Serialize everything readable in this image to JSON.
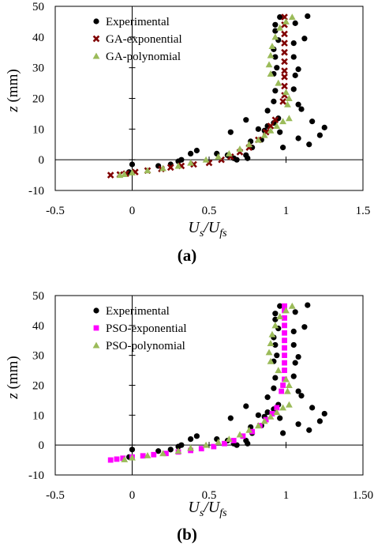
{
  "chart_data": [
    {
      "type": "scatter",
      "panel_label": "(a)",
      "xlabel_main": "U",
      "xlabel_sub1": "s",
      "xlabel_slash": "/U",
      "xlabel_sub2": "fs",
      "ylabel_italic": "z",
      "ylabel_unit": " (mm)",
      "xlim": [
        -0.5,
        1.5
      ],
      "ylim": [
        -10,
        50
      ],
      "xticks": [
        -0.5,
        0,
        0.5,
        1,
        1.5
      ],
      "xtick_labels": [
        "-0.5",
        "0",
        "0.5",
        "1",
        "1.5"
      ],
      "yticks": [
        -10,
        0,
        10,
        20,
        30,
        40,
        50
      ],
      "ytick_labels": [
        "-10",
        "0",
        "10",
        "20",
        "30",
        "40",
        "50"
      ],
      "legend_position": "top-left",
      "series": [
        {
          "name": "Experimental",
          "marker": "circle",
          "color": "#000000",
          "points": [
            [
              0.0,
              -1.5
            ],
            [
              -0.02,
              -4.0
            ],
            [
              0.17,
              -2.0
            ],
            [
              0.25,
              -1.5
            ],
            [
              0.3,
              -0.5
            ],
            [
              0.32,
              0.0
            ],
            [
              0.38,
              2.0
            ],
            [
              0.42,
              3.0
            ],
            [
              0.55,
              2.0
            ],
            [
              0.62,
              1.5
            ],
            [
              0.66,
              0.5
            ],
            [
              0.68,
              0.0
            ],
            [
              0.74,
              1.5
            ],
            [
              0.75,
              0.5
            ],
            [
              0.78,
              4.0
            ],
            [
              0.64,
              9.0
            ],
            [
              0.74,
              13.0
            ],
            [
              0.77,
              6.0
            ],
            [
              0.82,
              10.0
            ],
            [
              0.84,
              6.5
            ],
            [
              0.86,
              9.5
            ],
            [
              0.88,
              11.0
            ],
            [
              0.92,
              12.0
            ],
            [
              0.95,
              13.5
            ],
            [
              0.96,
              9.0
            ],
            [
              0.98,
              4.0
            ],
            [
              1.08,
              7.0
            ],
            [
              1.15,
              5.0
            ],
            [
              1.17,
              12.5
            ],
            [
              1.22,
              8.0
            ],
            [
              1.25,
              10.5
            ],
            [
              0.88,
              16.0
            ],
            [
              0.92,
              19.0
            ],
            [
              0.93,
              22.5
            ],
            [
              1.05,
              23.0
            ],
            [
              1.08,
              18.0
            ],
            [
              1.1,
              16.5
            ],
            [
              0.92,
              28.0
            ],
            [
              0.93,
              33.5
            ],
            [
              0.94,
              30.0
            ],
            [
              1.06,
              27.5
            ],
            [
              1.08,
              29.5
            ],
            [
              1.05,
              33.5
            ],
            [
              0.92,
              36.0
            ],
            [
              0.93,
              42.0
            ],
            [
              0.95,
              39.0
            ],
            [
              1.05,
              38.0
            ],
            [
              1.12,
              39.5
            ],
            [
              0.93,
              44.0
            ],
            [
              0.96,
              46.5
            ],
            [
              1.06,
              44.5
            ],
            [
              1.14,
              46.8
            ]
          ]
        },
        {
          "name": "GA-exponential",
          "marker": "x",
          "color": "#800000",
          "points": [
            [
              -0.14,
              -5.0
            ],
            [
              -0.08,
              -4.8
            ],
            [
              -0.04,
              -4.5
            ],
            [
              0.02,
              -4.0
            ],
            [
              0.1,
              -3.5
            ],
            [
              0.19,
              -3.0
            ],
            [
              0.25,
              -2.5
            ],
            [
              0.32,
              -2.0
            ],
            [
              0.4,
              -1.5
            ],
            [
              0.5,
              -1.0
            ],
            [
              0.58,
              0.0
            ],
            [
              0.64,
              1.0
            ],
            [
              0.7,
              2.5
            ],
            [
              0.76,
              4.0
            ],
            [
              0.82,
              6.5
            ],
            [
              0.87,
              9.0
            ],
            [
              0.9,
              11.0
            ],
            [
              0.93,
              13.0
            ],
            [
              0.98,
              19.0
            ],
            [
              0.99,
              21.0
            ],
            [
              0.99,
              24.0
            ],
            [
              0.99,
              27.0
            ],
            [
              0.99,
              29.0
            ],
            [
              0.99,
              32.0
            ],
            [
              0.99,
              35.0
            ],
            [
              0.99,
              38.0
            ],
            [
              0.99,
              41.0
            ],
            [
              0.99,
              44.0
            ],
            [
              0.99,
              46.5
            ]
          ]
        },
        {
          "name": "GA-polynomial",
          "marker": "triangle",
          "color": "#9BBB59",
          "points": [
            [
              -0.08,
              -5.0
            ],
            [
              -0.05,
              -4.7
            ],
            [
              0.0,
              -4.2
            ],
            [
              0.1,
              -3.5
            ],
            [
              0.2,
              -2.8
            ],
            [
              0.3,
              -2.0
            ],
            [
              0.38,
              -1.0
            ],
            [
              0.48,
              0.0
            ],
            [
              0.56,
              1.0
            ],
            [
              0.63,
              2.0
            ],
            [
              0.7,
              3.5
            ],
            [
              0.76,
              5.0
            ],
            [
              0.82,
              6.5
            ],
            [
              0.86,
              8.0
            ],
            [
              0.9,
              9.5
            ],
            [
              0.94,
              11.0
            ],
            [
              0.98,
              12.5
            ],
            [
              1.02,
              13.5
            ],
            [
              1.01,
              18.0
            ],
            [
              1.02,
              20.0
            ],
            [
              1.0,
              22.0
            ],
            [
              0.95,
              25.0
            ],
            [
              0.9,
              28.0
            ],
            [
              0.89,
              31.0
            ],
            [
              0.9,
              34.0
            ],
            [
              0.91,
              37.0
            ],
            [
              0.93,
              40.0
            ],
            [
              0.96,
              43.0
            ],
            [
              1.0,
              45.0
            ],
            [
              1.04,
              46.5
            ]
          ]
        }
      ]
    },
    {
      "type": "scatter",
      "panel_label": "(b)",
      "xlabel_main": "U",
      "xlabel_sub1": "s",
      "xlabel_slash": "/U",
      "xlabel_sub2": "fs",
      "ylabel_italic": "z",
      "ylabel_unit": " (mm)",
      "xlim": [
        -0.5,
        1.5
      ],
      "ylim": [
        -10,
        50
      ],
      "xticks": [
        -0.5,
        0,
        0.5,
        1,
        1.5
      ],
      "xtick_labels": [
        "-0.5",
        "0",
        "0.5",
        "1",
        "1.50"
      ],
      "yticks": [
        -10,
        0,
        10,
        20,
        30,
        40,
        50
      ],
      "ytick_labels": [
        "-10",
        "0",
        "10",
        "20",
        "30",
        "40",
        "50"
      ],
      "legend_position": "top-left",
      "series": [
        {
          "name": "Experimental",
          "marker": "circle",
          "color": "#000000",
          "points": [
            [
              0.0,
              -1.5
            ],
            [
              -0.02,
              -4.0
            ],
            [
              0.17,
              -2.0
            ],
            [
              0.25,
              -1.5
            ],
            [
              0.3,
              -0.5
            ],
            [
              0.32,
              0.0
            ],
            [
              0.38,
              2.0
            ],
            [
              0.42,
              3.0
            ],
            [
              0.55,
              2.0
            ],
            [
              0.62,
              1.5
            ],
            [
              0.66,
              0.5
            ],
            [
              0.68,
              0.0
            ],
            [
              0.74,
              1.5
            ],
            [
              0.75,
              0.5
            ],
            [
              0.78,
              4.0
            ],
            [
              0.64,
              9.0
            ],
            [
              0.74,
              13.0
            ],
            [
              0.77,
              6.0
            ],
            [
              0.82,
              10.0
            ],
            [
              0.84,
              6.5
            ],
            [
              0.86,
              9.5
            ],
            [
              0.88,
              11.0
            ],
            [
              0.92,
              12.0
            ],
            [
              0.95,
              13.5
            ],
            [
              0.96,
              9.0
            ],
            [
              0.98,
              4.0
            ],
            [
              1.08,
              7.0
            ],
            [
              1.15,
              5.0
            ],
            [
              1.17,
              12.5
            ],
            [
              1.22,
              8.0
            ],
            [
              1.25,
              10.5
            ],
            [
              0.88,
              16.0
            ],
            [
              0.92,
              19.0
            ],
            [
              0.93,
              22.5
            ],
            [
              1.05,
              23.0
            ],
            [
              1.08,
              18.0
            ],
            [
              1.1,
              16.5
            ],
            [
              0.92,
              28.0
            ],
            [
              0.93,
              33.5
            ],
            [
              0.94,
              30.0
            ],
            [
              1.06,
              27.5
            ],
            [
              1.08,
              29.5
            ],
            [
              1.05,
              33.5
            ],
            [
              0.92,
              36.0
            ],
            [
              0.93,
              42.0
            ],
            [
              0.95,
              39.0
            ],
            [
              1.05,
              38.0
            ],
            [
              1.12,
              39.5
            ],
            [
              0.93,
              44.0
            ],
            [
              0.96,
              46.5
            ],
            [
              1.06,
              44.5
            ],
            [
              1.14,
              46.8
            ]
          ]
        },
        {
          "name": "PSO-exponential",
          "marker": "square",
          "color": "#FF00FF",
          "points": [
            [
              -0.14,
              -5.0
            ],
            [
              -0.1,
              -4.7
            ],
            [
              -0.06,
              -4.4
            ],
            [
              0.0,
              -4.0
            ],
            [
              0.07,
              -3.6
            ],
            [
              0.14,
              -3.2
            ],
            [
              0.22,
              -2.8
            ],
            [
              0.3,
              -2.3
            ],
            [
              0.38,
              -1.8
            ],
            [
              0.45,
              -1.2
            ],
            [
              0.53,
              -0.5
            ],
            [
              0.6,
              0.5
            ],
            [
              0.66,
              1.5
            ],
            [
              0.72,
              3.0
            ],
            [
              0.78,
              4.5
            ],
            [
              0.83,
              6.5
            ],
            [
              0.87,
              8.5
            ],
            [
              0.91,
              10.5
            ],
            [
              0.94,
              12.5
            ],
            [
              0.97,
              18.0
            ],
            [
              0.98,
              20.0
            ],
            [
              0.99,
              22.0
            ],
            [
              0.99,
              25.0
            ],
            [
              0.99,
              27.5
            ],
            [
              0.99,
              30.0
            ],
            [
              0.99,
              32.5
            ],
            [
              0.99,
              35.0
            ],
            [
              0.99,
              37.5
            ],
            [
              0.99,
              40.0
            ],
            [
              0.99,
              42.5
            ],
            [
              0.99,
              45.0
            ],
            [
              0.99,
              46.5
            ]
          ]
        },
        {
          "name": "PSO-polynomial",
          "marker": "triangle",
          "color": "#9BBB59",
          "points": [
            [
              -0.05,
              -4.8
            ],
            [
              0.0,
              -4.2
            ],
            [
              0.1,
              -3.5
            ],
            [
              0.2,
              -2.8
            ],
            [
              0.3,
              -2.0
            ],
            [
              0.38,
              -1.0
            ],
            [
              0.48,
              0.0
            ],
            [
              0.56,
              1.0
            ],
            [
              0.63,
              2.0
            ],
            [
              0.7,
              3.5
            ],
            [
              0.76,
              5.0
            ],
            [
              0.82,
              6.5
            ],
            [
              0.86,
              8.0
            ],
            [
              0.9,
              9.5
            ],
            [
              0.94,
              11.0
            ],
            [
              0.98,
              12.5
            ],
            [
              1.02,
              13.5
            ],
            [
              1.01,
              18.0
            ],
            [
              1.02,
              20.0
            ],
            [
              1.0,
              22.0
            ],
            [
              0.95,
              25.0
            ],
            [
              0.9,
              28.0
            ],
            [
              0.89,
              31.0
            ],
            [
              0.9,
              34.0
            ],
            [
              0.91,
              37.0
            ],
            [
              0.93,
              40.0
            ],
            [
              0.96,
              43.0
            ],
            [
              1.0,
              45.0
            ],
            [
              1.04,
              46.5
            ]
          ]
        }
      ]
    }
  ]
}
